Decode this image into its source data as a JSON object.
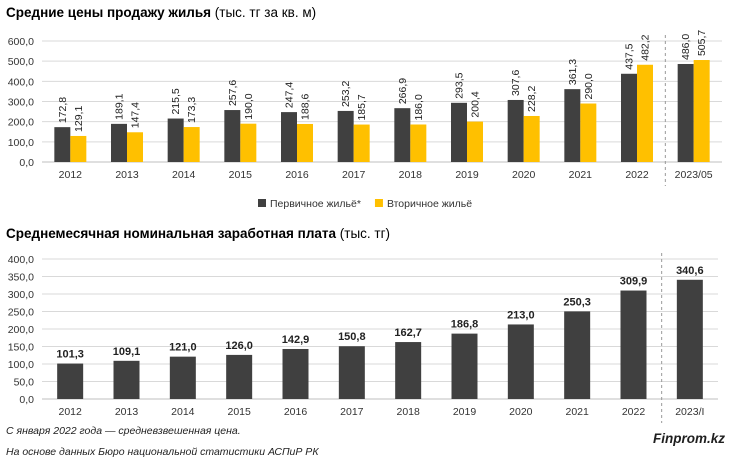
{
  "chart_data": [
    {
      "type": "bar",
      "title": "Средние цены продажу жилья",
      "title_unit": "(тыс. тг за кв. м)",
      "categories": [
        "2012",
        "2013",
        "2014",
        "2015",
        "2016",
        "2017",
        "2018",
        "2019",
        "2020",
        "2021",
        "2022",
        "2023/05"
      ],
      "series": [
        {
          "name": "Первичное жильё*",
          "color": "#404040",
          "values": [
            172.8,
            189.1,
            215.5,
            257.6,
            247.4,
            253.2,
            266.9,
            293.5,
            307.6,
            361.3,
            437.5,
            486.0
          ],
          "labels": [
            "172,8",
            "189,1",
            "215,5",
            "257,6",
            "247,4",
            "253,2",
            "266,9",
            "293,5",
            "307,6",
            "361,3",
            "437,5",
            "486,0"
          ]
        },
        {
          "name": "Вторичное жильё",
          "color": "#ffc000",
          "values": [
            129.1,
            147.4,
            173.3,
            190.0,
            188.6,
            185.7,
            186.0,
            200.4,
            228.2,
            290.0,
            482.2,
            505.7
          ],
          "labels": [
            "129,1",
            "147,4",
            "173,3",
            "190,0",
            "188,6",
            "185,7",
            "186,0",
            "200,4",
            "228,2",
            "290,0",
            "482,2",
            "505,7"
          ]
        }
      ],
      "ylim": [
        0,
        600
      ],
      "yticks": [
        "0,0",
        "100,0",
        "200,0",
        "300,0",
        "400,0",
        "500,0",
        "600,0"
      ],
      "grid": true,
      "legend": "bottom-center"
    },
    {
      "type": "bar",
      "title": "Среднемесячная номинальная заработная плата",
      "title_unit": "(тыс. тг)",
      "categories": [
        "2012",
        "2013",
        "2014",
        "2015",
        "2016",
        "2017",
        "2018",
        "2019",
        "2020",
        "2021",
        "2022",
        "2023/I"
      ],
      "series": [
        {
          "name": "Заработная плата",
          "color": "#404040",
          "values": [
            101.3,
            109.1,
            121.0,
            126.0,
            142.9,
            150.8,
            162.7,
            186.8,
            213.0,
            250.3,
            309.9,
            340.6
          ],
          "labels": [
            "101,3",
            "109,1",
            "121,0",
            "126,0",
            "142,9",
            "150,8",
            "162,7",
            "186,8",
            "213,0",
            "250,3",
            "309,9",
            "340,6"
          ]
        }
      ],
      "ylim": [
        0,
        400
      ],
      "yticks": [
        "0,0",
        "50,0",
        "100,0",
        "150,0",
        "200,0",
        "250,0",
        "300,0",
        "350,0",
        "400,0"
      ],
      "grid": true
    }
  ],
  "footnote": "С января 2022 года — средневзвешенная цена.",
  "source": "На основе данных Бюро национальной статистики АСПиР РК",
  "brand": "Finprom.kz"
}
